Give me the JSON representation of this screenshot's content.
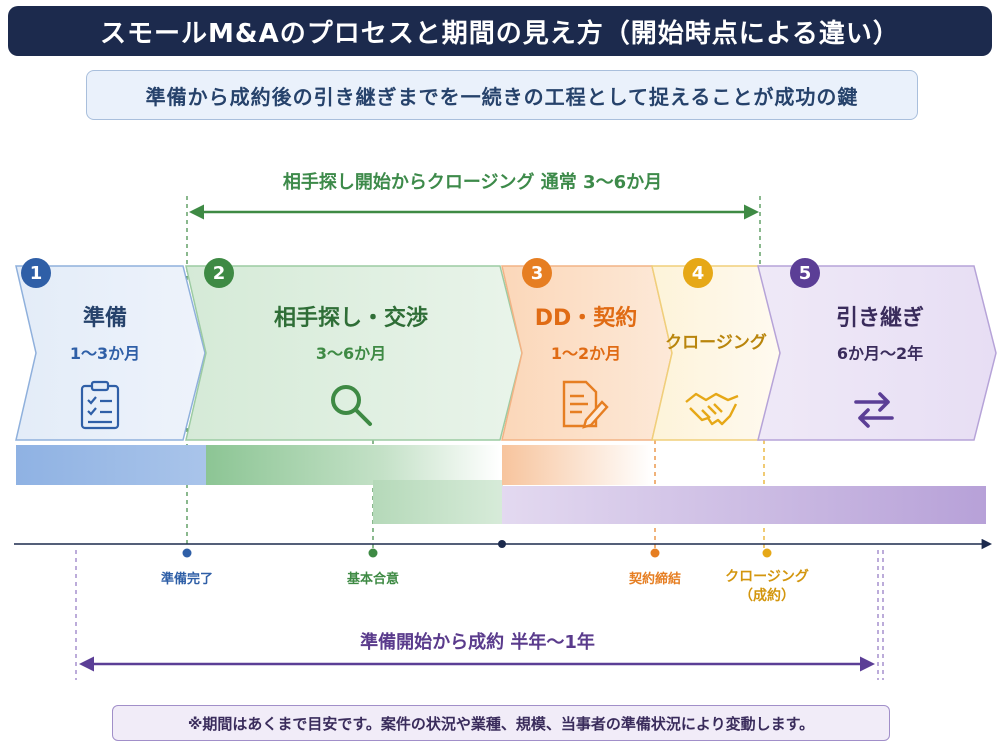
{
  "title": "スモールM&Aのプロセスと期間の見え方（開始時点による違い）",
  "subtitle": "準備から成約後の引き継ぎまでを一続きの工程として捉えることが成功の鍵",
  "span_search_to_closing": "相手探し開始からクロージング 通常 3〜6か月",
  "span_prep_to_contract": "準備開始から成約 半年〜1年",
  "phases": [
    {
      "num": "1",
      "name": "準備",
      "duration": "1〜3か月",
      "icon": "clipboard-icon",
      "color": "#2f5fa7"
    },
    {
      "num": "2",
      "name": "相手探し・交渉",
      "duration": "3〜6か月",
      "icon": "magnifier-icon",
      "color": "#3e8a44"
    },
    {
      "num": "3",
      "name": "DD・契約",
      "duration": "1〜2か月",
      "icon": "document-pen-icon",
      "color": "#e67e22"
    },
    {
      "num": "4",
      "name": "クロージング",
      "duration": "",
      "icon": "handshake-icon",
      "color": "#e6a817"
    },
    {
      "num": "5",
      "name": "引き継ぎ",
      "duration": "6か月〜2年",
      "icon": "swap-arrows-icon",
      "color": "#5b3e96"
    }
  ],
  "milestones": [
    {
      "label": "準備完了",
      "color": "#2f5fa7"
    },
    {
      "label": "基本合意",
      "color": "#3e8a44"
    },
    {
      "label": "契約締結",
      "color": "#e67e22"
    },
    {
      "label": "クロージング\n（成約）",
      "color": "#e6a817"
    }
  ],
  "note": "※期間はあくまで目安です。案件の状況や業種、規模、当事者の準備状況により変動します。"
}
